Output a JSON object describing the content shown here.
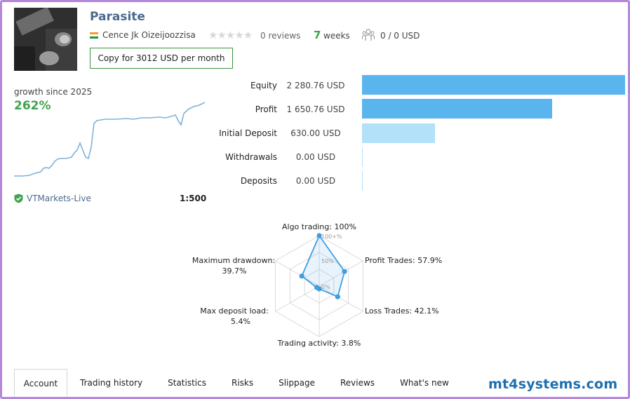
{
  "signal": {
    "title": "Parasite",
    "author": "Cence Jk Oizeijoozzisa",
    "reviews": "0 reviews",
    "weeks_num": "7",
    "weeks_label": "weeks",
    "subscribers": "0 / 0 USD",
    "copy_button": "Copy for 3012 USD per month",
    "rating": 0
  },
  "growth": {
    "label": "growth since 2025",
    "value": "262%"
  },
  "account": {
    "broker": "VTMarkets-Live",
    "leverage": "1:500"
  },
  "stats": [
    {
      "label": "Equity",
      "value": "2 280.76 USD",
      "amount": 2280.76
    },
    {
      "label": "Profit",
      "value": "1 650.76 USD",
      "amount": 1650.76
    },
    {
      "label": "Initial Deposit",
      "value": "630.00 USD",
      "amount": 630.0
    },
    {
      "label": "Withdrawals",
      "value": "0.00 USD",
      "amount": 0
    },
    {
      "label": "Deposits",
      "value": "0.00 USD",
      "amount": 0
    }
  ],
  "radar": {
    "ticks": [
      "100+%",
      "50%",
      "0%"
    ],
    "axes": [
      {
        "label": "Algo trading: 100%",
        "value": 100
      },
      {
        "label": "Profit Trades: 57.9%",
        "value": 57.9
      },
      {
        "label": "Loss Trades: 42.1%",
        "value": 42.1
      },
      {
        "label": "Trading activity: 3.8%",
        "value": 3.8
      },
      {
        "label_line1": "Max deposit load:",
        "label_line2": "5.4%",
        "value": 5.4
      },
      {
        "label_line1": "Maximum drawdown:",
        "label_line2": "39.7%",
        "value": 39.7
      }
    ]
  },
  "tabs": [
    "Account",
    "Trading history",
    "Statistics",
    "Risks",
    "Slippage",
    "Reviews",
    "What's new"
  ],
  "watermark": "mt4systems.com",
  "colors": {
    "accent_green": "#3fa34d",
    "bar_blue": "#5ab4ee",
    "bar_light": "#b3e1f9",
    "line_blue": "#7fb3d9",
    "radar_blue": "#3f9ee0"
  }
}
